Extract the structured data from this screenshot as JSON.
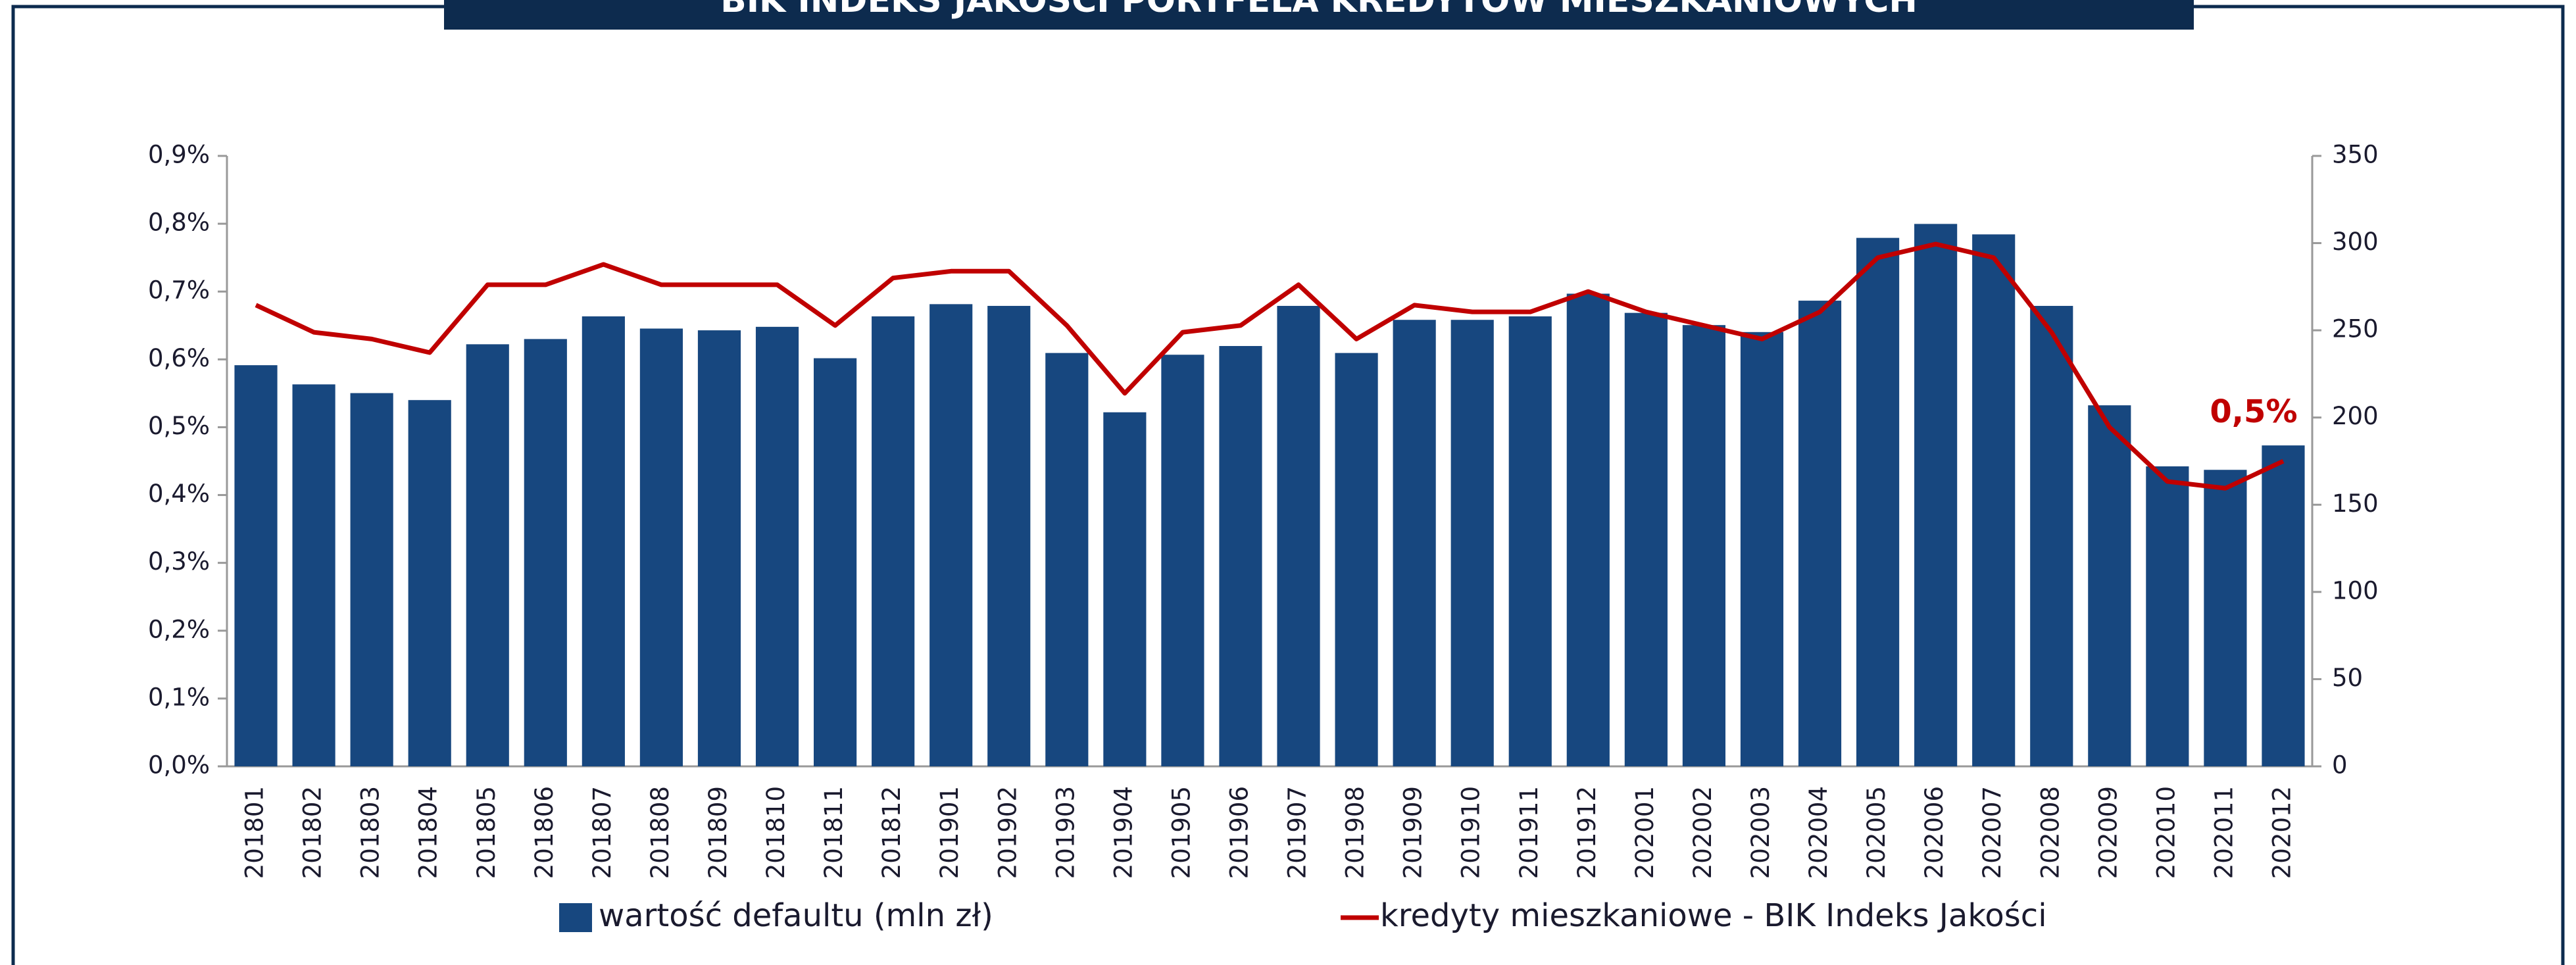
{
  "chart_data": {
    "type": "bar_line",
    "title": "BIK INDEKS JAKOŚCI PORTFELA KREDYTÓW MIESZKANIOWYCH",
    "categories": [
      "201801",
      "201802",
      "201803",
      "201804",
      "201805",
      "201806",
      "201807",
      "201808",
      "201809",
      "201810",
      "201811",
      "201812",
      "201901",
      "201902",
      "201903",
      "201904",
      "201905",
      "201906",
      "201907",
      "201908",
      "201909",
      "201910",
      "201911",
      "201912",
      "202001",
      "202002",
      "202003",
      "202004",
      "202005",
      "202006",
      "202007",
      "202008",
      "202009",
      "202010",
      "202011",
      "202012"
    ],
    "series": [
      {
        "name": "wartość defaultu (mln zł)",
        "type": "bar",
        "axis": "y2",
        "color": "#17477f",
        "values": [
          230,
          219,
          214,
          210,
          242,
          245,
          258,
          251,
          250,
          252,
          234,
          258,
          265,
          264,
          237,
          203,
          236,
          241,
          264,
          237,
          256,
          256,
          258,
          271,
          260,
          253,
          249,
          267,
          303,
          311,
          305,
          264,
          207,
          172,
          170,
          184
        ]
      },
      {
        "name": "kredyty mieszkaniowe - BIK Indeks Jakości",
        "type": "line",
        "axis": "y",
        "color": "#c00000",
        "values": [
          0.68,
          0.64,
          0.63,
          0.61,
          0.71,
          0.71,
          0.74,
          0.71,
          0.71,
          0.71,
          0.65,
          0.72,
          0.73,
          0.73,
          0.65,
          0.55,
          0.64,
          0.65,
          0.71,
          0.63,
          0.68,
          0.67,
          0.67,
          0.7,
          0.67,
          0.65,
          0.63,
          0.67,
          0.75,
          0.77,
          0.75,
          0.64,
          0.5,
          0.42,
          0.41,
          0.45
        ],
        "value_labels": [
          null,
          null,
          null,
          null,
          null,
          null,
          null,
          null,
          null,
          null,
          null,
          null,
          null,
          null,
          null,
          null,
          null,
          null,
          null,
          null,
          null,
          null,
          null,
          null,
          null,
          null,
          null,
          null,
          null,
          null,
          null,
          null,
          null,
          null,
          null,
          "0,5%"
        ]
      }
    ],
    "ylim": [
      0,
      0.9
    ],
    "yticks": [
      {
        "value": 0,
        "label": "0,0%"
      },
      {
        "value": 0.1,
        "label": "0,1%"
      },
      {
        "value": 0.2,
        "label": "0,2%"
      },
      {
        "value": 0.3,
        "label": "0,3%"
      },
      {
        "value": 0.4,
        "label": "0,4%"
      },
      {
        "value": 0.5,
        "label": "0,5%"
      },
      {
        "value": 0.6,
        "label": "0,6%"
      },
      {
        "value": 0.7,
        "label": "0,7%"
      },
      {
        "value": 0.8,
        "label": "0,8%"
      },
      {
        "value": 0.9,
        "label": "0,9%"
      }
    ],
    "y2lim": [
      0,
      350
    ],
    "y2ticks": [
      0,
      50,
      100,
      150,
      200,
      250,
      300,
      350
    ],
    "legend": "bottom"
  }
}
